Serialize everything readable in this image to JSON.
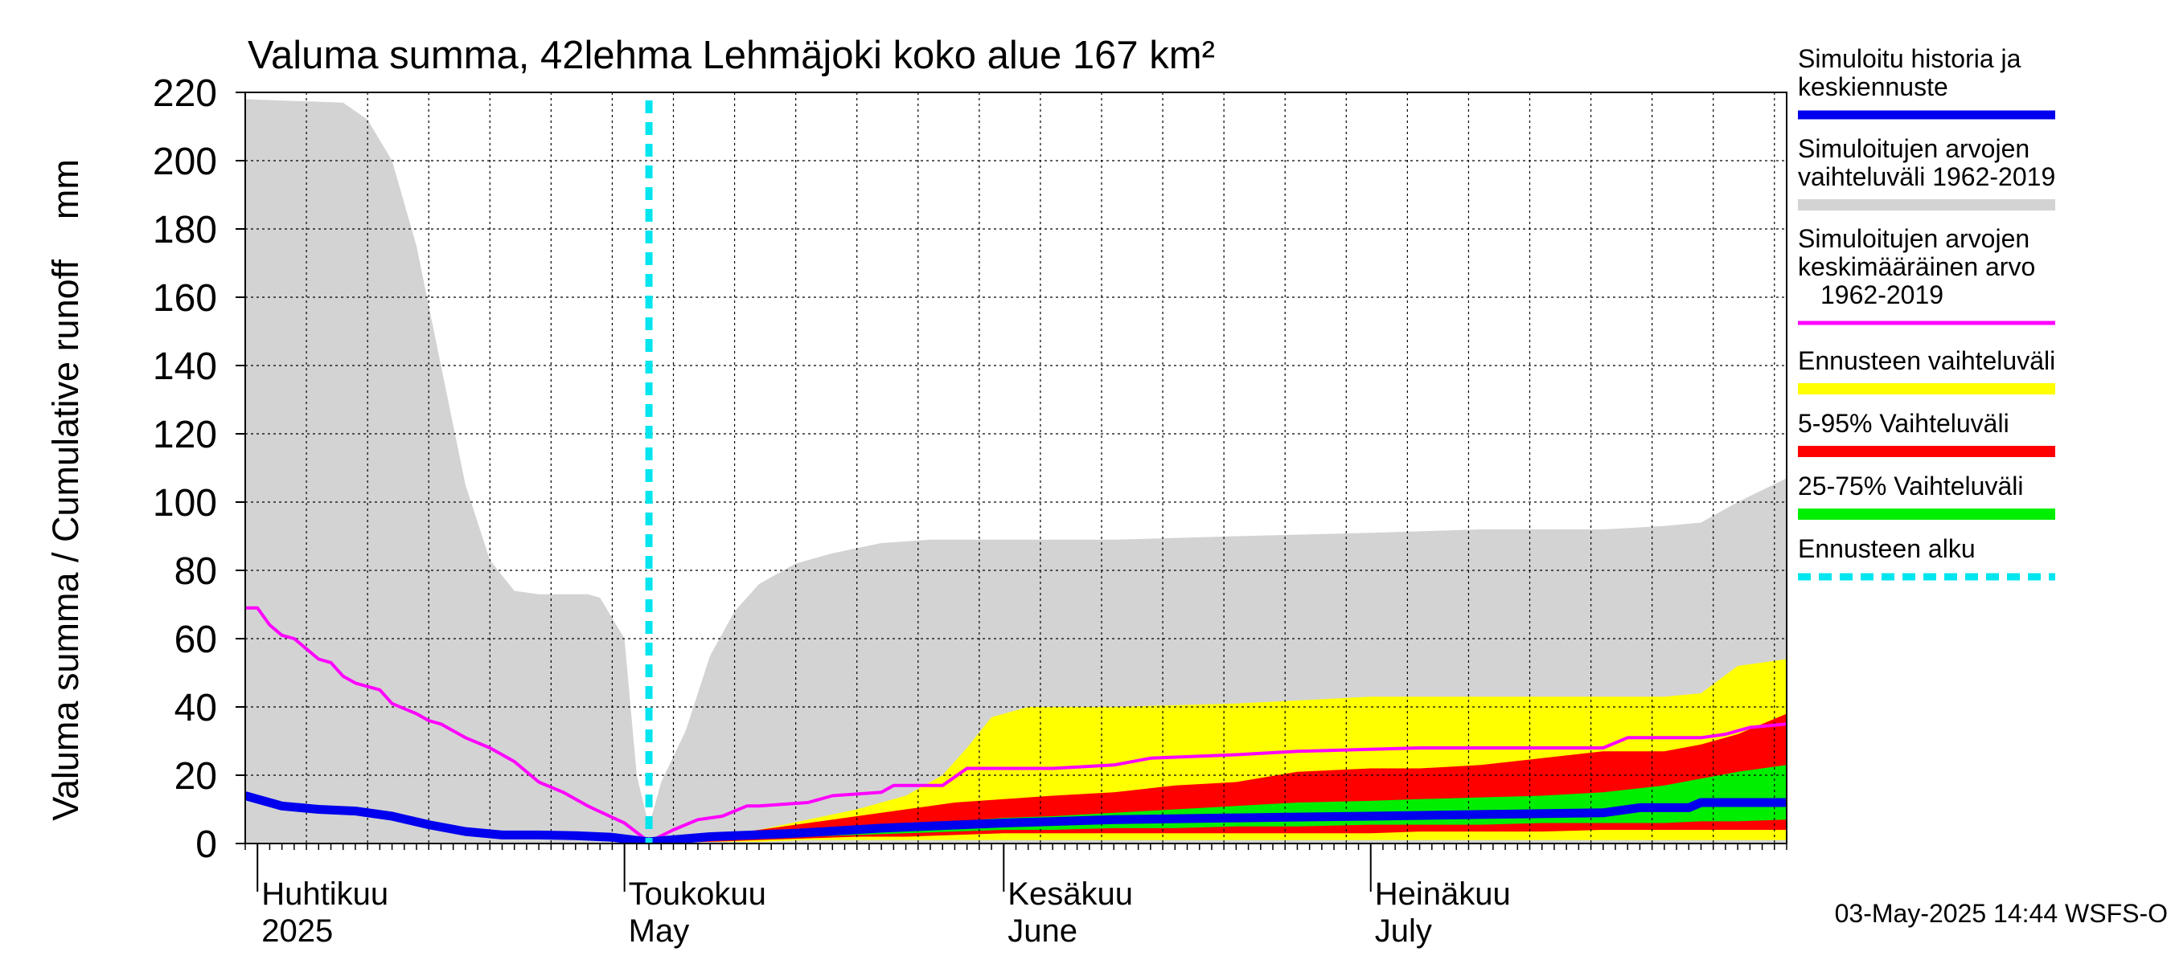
{
  "chart_data": {
    "type": "area",
    "title": "Valuma summa, 42lehma Lehmäjoki koko alue 167 km²",
    "ylabel": "Valuma summa / Cumulative runoff    mm",
    "ylim": [
      0,
      220
    ],
    "yticks": [
      0,
      20,
      40,
      60,
      80,
      100,
      120,
      140,
      160,
      180,
      200,
      220
    ],
    "xlim": [
      "2025-03-31",
      "2025-08-04"
    ],
    "grid": true,
    "month_labels": [
      {
        "date": "2025-04-01",
        "fi": "Huhtikuu",
        "en": "2025"
      },
      {
        "date": "2025-05-01",
        "fi": "Toukokuu",
        "en": "May"
      },
      {
        "date": "2025-06-01",
        "fi": "Kesäkuu",
        "en": "June"
      },
      {
        "date": "2025-07-01",
        "fi": "Heinäkuu",
        "en": "July"
      }
    ],
    "forecast_start": "2025-05-03",
    "legend_position": "right",
    "legend": [
      {
        "label": "Simuloitu historia ja keskiennuste",
        "color": "#0000ee"
      },
      {
        "label": "Simuloitujen arvojen vaihteluväli 1962-2019",
        "color": "#d3d3d3"
      },
      {
        "label": "Simuloitujen arvojen keskimääräinen arvo 1962-2019",
        "color": "#ff00ff"
      },
      {
        "label": "Ennusteen vaihteluväli",
        "color": "#ffff00"
      },
      {
        "label": "5-95% Vaihteluväli",
        "color": "#ff0000"
      },
      {
        "label": "25-75% Vaihteluväli",
        "color": "#00ee00"
      },
      {
        "label": "Ennusteen alku",
        "color": "#00e5ee"
      }
    ],
    "historical_range": {
      "x": [
        "2025-03-31",
        "2025-04-08",
        "2025-04-10",
        "2025-04-12",
        "2025-04-14",
        "2025-04-16",
        "2025-04-18",
        "2025-04-20",
        "2025-04-22",
        "2025-04-24",
        "2025-04-26",
        "2025-04-28",
        "2025-04-29",
        "2025-05-01",
        "2025-05-02",
        "2025-05-03",
        "2025-05-04",
        "2025-05-06",
        "2025-05-08",
        "2025-05-10",
        "2025-05-12",
        "2025-05-15",
        "2025-05-18",
        "2025-05-22",
        "2025-05-26",
        "2025-06-01",
        "2025-06-10",
        "2025-06-20",
        "2025-07-01",
        "2025-07-10",
        "2025-07-20",
        "2025-07-25",
        "2025-07-28",
        "2025-07-31",
        "2025-08-04"
      ],
      "upper": [
        218,
        217,
        212,
        200,
        175,
        140,
        105,
        83,
        74,
        73,
        73,
        73,
        72,
        60,
        20,
        5,
        18,
        33,
        55,
        68,
        76,
        82,
        85,
        88,
        89,
        89,
        89,
        90,
        91,
        92,
        92,
        93,
        94,
        100,
        107
      ],
      "lower": [
        0,
        0,
        0,
        0,
        0,
        0,
        0,
        0,
        0,
        0,
        0,
        0,
        0,
        0,
        0,
        0,
        0,
        0,
        0,
        0,
        0,
        0,
        0,
        0,
        0,
        0,
        0,
        0,
        0,
        0,
        0,
        0,
        0,
        0,
        0
      ]
    },
    "forecast_range": {
      "x": [
        "2025-05-03",
        "2025-05-08",
        "2025-05-12",
        "2025-05-16",
        "2025-05-20",
        "2025-05-24",
        "2025-05-27",
        "2025-05-29",
        "2025-05-31",
        "2025-06-03",
        "2025-06-10",
        "2025-06-20",
        "2025-07-01",
        "2025-07-10",
        "2025-07-20",
        "2025-07-25",
        "2025-07-28",
        "2025-07-31",
        "2025-08-04"
      ],
      "upper": [
        0,
        2,
        4,
        7,
        10,
        14,
        20,
        28,
        37,
        40,
        40,
        41,
        43,
        43,
        43,
        43,
        44,
        52,
        54
      ],
      "lower": [
        0,
        0.5,
        0.5,
        1,
        1,
        1,
        1,
        1,
        1,
        1,
        1,
        1,
        1,
        1,
        1,
        1,
        1,
        1,
        1
      ]
    },
    "p5_95": {
      "x": [
        "2025-05-03",
        "2025-05-08",
        "2025-05-12",
        "2025-05-16",
        "2025-05-20",
        "2025-05-24",
        "2025-05-28",
        "2025-06-01",
        "2025-06-05",
        "2025-06-10",
        "2025-06-15",
        "2025-06-20",
        "2025-06-25",
        "2025-07-01",
        "2025-07-05",
        "2025-07-10",
        "2025-07-15",
        "2025-07-20",
        "2025-07-25",
        "2025-07-28",
        "2025-07-31",
        "2025-08-04"
      ],
      "upper": [
        0,
        2,
        4,
        6,
        8,
        10,
        12,
        13,
        14,
        15,
        17,
        18,
        21,
        22,
        22,
        23,
        25,
        27,
        27,
        29,
        32,
        38
      ],
      "lower": [
        0,
        0.5,
        1,
        1.5,
        2,
        2,
        2.5,
        3,
        3,
        3,
        3,
        3,
        3,
        3,
        3.5,
        3.5,
        3.5,
        4,
        4,
        4,
        4,
        4
      ]
    },
    "p25_75": {
      "x": [
        "2025-05-03",
        "2025-05-08",
        "2025-05-12",
        "2025-05-16",
        "2025-05-20",
        "2025-05-24",
        "2025-05-28",
        "2025-06-01",
        "2025-06-05",
        "2025-06-10",
        "2025-06-15",
        "2025-06-20",
        "2025-06-25",
        "2025-07-01",
        "2025-07-05",
        "2025-07-10",
        "2025-07-15",
        "2025-07-20",
        "2025-07-25",
        "2025-07-28",
        "2025-07-31",
        "2025-08-04"
      ],
      "upper": [
        0,
        1.5,
        2.5,
        3.5,
        4.5,
        5.5,
        6.5,
        7.5,
        8,
        9,
        10,
        11,
        12,
        12.5,
        13,
        13.5,
        14,
        15,
        17,
        19,
        21,
        23
      ],
      "lower": [
        0,
        1,
        1.5,
        2,
        2.5,
        3,
        3.5,
        4,
        4,
        4.5,
        4.5,
        5,
        5,
        5.5,
        5.5,
        5.5,
        6,
        6,
        6,
        6.5,
        6.5,
        7
      ]
    },
    "series": [
      {
        "name": "Simuloitu historia ja keskiennuste",
        "color": "#0000ee",
        "x": [
          "2025-03-31",
          "2025-04-03",
          "2025-04-06",
          "2025-04-09",
          "2025-04-12",
          "2025-04-15",
          "2025-04-18",
          "2025-04-21",
          "2025-04-24",
          "2025-04-27",
          "2025-04-30",
          "2025-05-03",
          "2025-05-08",
          "2025-05-15",
          "2025-05-22",
          "2025-06-01",
          "2025-06-10",
          "2025-06-20",
          "2025-07-01",
          "2025-07-10",
          "2025-07-20",
          "2025-07-23",
          "2025-07-27",
          "2025-07-28",
          "2025-08-04"
        ],
        "y": [
          14,
          11,
          10,
          9.5,
          8,
          5.5,
          3.5,
          2.5,
          2.5,
          2.3,
          1.8,
          0.5,
          2,
          3,
          4.5,
          6,
          7,
          7.5,
          8,
          8.5,
          9,
          10.5,
          10.5,
          12,
          12
        ]
      },
      {
        "name": "Simuloitujen arvojen keskimääräinen arvo 1962-2019",
        "color": "#ff00ff",
        "x": [
          "2025-03-31",
          "2025-04-01",
          "2025-04-02",
          "2025-04-03",
          "2025-04-04",
          "2025-04-06",
          "2025-04-07",
          "2025-04-08",
          "2025-04-09",
          "2025-04-11",
          "2025-04-12",
          "2025-04-14",
          "2025-04-15",
          "2025-04-16",
          "2025-04-18",
          "2025-04-20",
          "2025-04-22",
          "2025-04-24",
          "2025-04-26",
          "2025-04-28",
          "2025-05-01",
          "2025-05-03",
          "2025-05-05",
          "2025-05-07",
          "2025-05-09",
          "2025-05-11",
          "2025-05-12",
          "2025-05-16",
          "2025-05-18",
          "2025-05-22",
          "2025-05-23",
          "2025-05-27",
          "2025-05-29",
          "2025-06-05",
          "2025-06-10",
          "2025-06-13",
          "2025-06-20",
          "2025-06-25",
          "2025-07-05",
          "2025-07-15",
          "2025-07-20",
          "2025-07-22",
          "2025-07-28",
          "2025-07-30",
          "2025-08-01",
          "2025-08-04"
        ],
        "y": [
          69,
          69,
          64,
          61,
          60,
          54,
          53,
          49,
          47,
          45,
          41,
          38,
          36,
          35,
          31,
          28,
          24,
          18,
          15,
          11,
          6,
          0.5,
          4,
          7,
          8,
          11,
          11,
          12,
          14,
          15,
          17,
          17,
          22,
          22,
          23,
          25,
          26,
          27,
          28,
          28,
          28,
          31,
          31,
          32,
          34,
          35
        ]
      }
    ],
    "timestamp": "03-May-2025 14:44 WSFS-O"
  }
}
